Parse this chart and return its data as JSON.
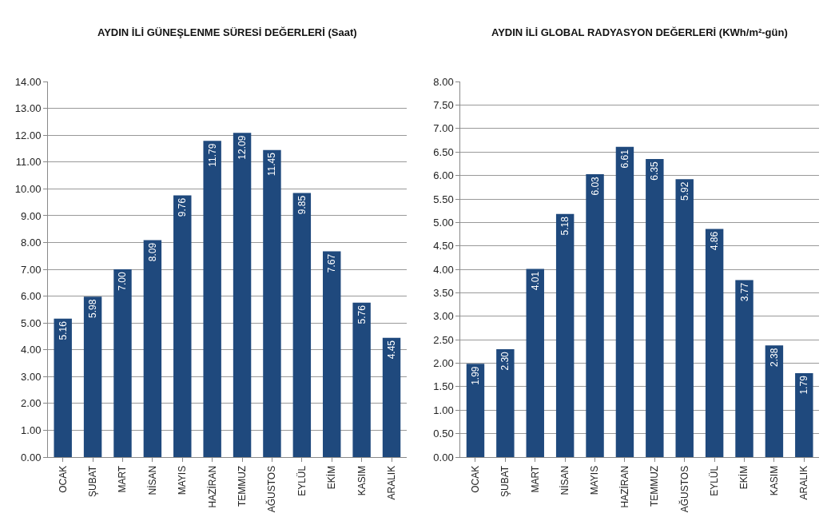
{
  "chart_data": [
    {
      "type": "bar",
      "title": "AYDIN İLİ GÜNEŞLENME SÜRESİ DEĞERLERİ (Saat)",
      "categories": [
        "OCAK",
        "ŞUBAT",
        "MART",
        "NİSAN",
        "MAYIS",
        "HAZİRAN",
        "TEMMUZ",
        "AĞUSTOS",
        "EYLÜL",
        "EKİM",
        "KASIM",
        "ARALIK"
      ],
      "values": [
        5.16,
        5.98,
        7.0,
        8.09,
        9.76,
        11.79,
        12.09,
        11.45,
        9.85,
        7.67,
        5.76,
        4.45
      ],
      "value_labels": [
        "5.16",
        "5.98",
        "7.00",
        "8.09",
        "9.76",
        "11.79",
        "12.09",
        "11.45",
        "9.85",
        "7.67",
        "5.76",
        "4.45"
      ],
      "color": "#1f497d",
      "ylim": [
        0,
        14
      ],
      "yticks": [
        {
          "value": 0,
          "label": "0.00"
        },
        {
          "value": 1,
          "label": "1.00"
        },
        {
          "value": 2,
          "label": "2.00"
        },
        {
          "value": 3,
          "label": "3.00"
        },
        {
          "value": 4,
          "label": "4.00"
        },
        {
          "value": 5,
          "label": "5.00"
        },
        {
          "value": 6,
          "label": "6.00"
        },
        {
          "value": 7,
          "label": "7.00"
        },
        {
          "value": 8,
          "label": "8.00"
        },
        {
          "value": 9,
          "label": "9.00"
        },
        {
          "value": 10,
          "label": "10.00"
        },
        {
          "value": 11,
          "label": "11.00"
        },
        {
          "value": 12,
          "label": "12.00"
        },
        {
          "value": 13,
          "label": "13.00"
        },
        {
          "value": 14,
          "label": "14.00"
        }
      ],
      "grid": "y"
    },
    {
      "type": "bar",
      "title": "AYDIN İLİ GLOBAL RADYASYON DEĞERLERİ (KWh/m²-gün)",
      "categories": [
        "OCAK",
        "ŞUBAT",
        "MART",
        "NİSAN",
        "MAYIS",
        "HAZİRAN",
        "TEMMUZ",
        "AĞUSTOS",
        "EYLÜL",
        "EKİM",
        "KASIM",
        "ARALIK"
      ],
      "values": [
        1.99,
        2.3,
        4.01,
        5.18,
        6.03,
        6.61,
        6.35,
        5.92,
        4.86,
        3.77,
        2.38,
        1.79
      ],
      "value_labels": [
        "1.99",
        "2.30",
        "4.01",
        "5.18",
        "6.03",
        "6.61",
        "6.35",
        "5.92",
        "4.86",
        "3.77",
        "2.38",
        "1.79"
      ],
      "color": "#1f497d",
      "ylim": [
        0,
        8
      ],
      "yticks": [
        {
          "value": 0,
          "label": "0.00"
        },
        {
          "value": 0.5,
          "label": "0.50"
        },
        {
          "value": 1,
          "label": "1.00"
        },
        {
          "value": 1.5,
          "label": "1.50"
        },
        {
          "value": 2,
          "label": "2.00"
        },
        {
          "value": 2.5,
          "label": "2.50"
        },
        {
          "value": 3,
          "label": "3.00"
        },
        {
          "value": 3.5,
          "label": "3.50"
        },
        {
          "value": 4,
          "label": "4.00"
        },
        {
          "value": 4.5,
          "label": "4.50"
        },
        {
          "value": 5,
          "label": "5.00"
        },
        {
          "value": 5.5,
          "label": "5.50"
        },
        {
          "value": 6,
          "label": "6.00"
        },
        {
          "value": 6.5,
          "label": "6.50"
        },
        {
          "value": 7,
          "label": "7.00"
        },
        {
          "value": 7.5,
          "label": "7.50"
        },
        {
          "value": 8,
          "label": "8.00"
        }
      ],
      "grid": "y"
    }
  ]
}
